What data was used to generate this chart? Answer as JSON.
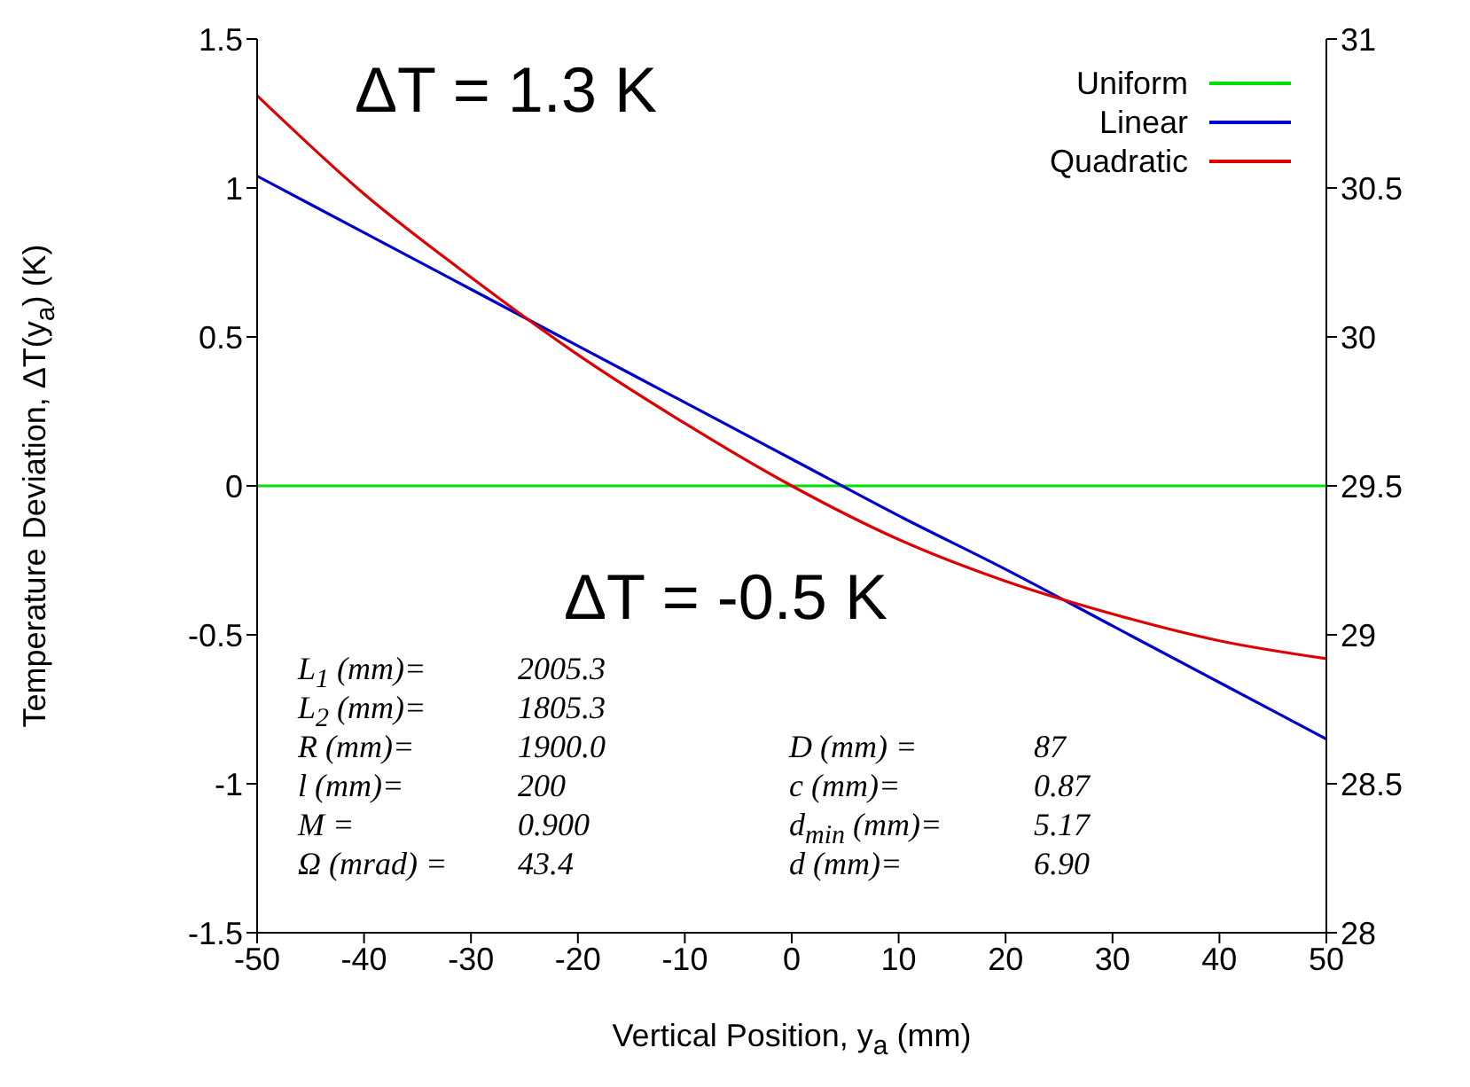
{
  "chart_data": {
    "type": "line",
    "xlabel": "Vertical Position,  y$_{a}$  (mm)",
    "ylabel": "Temperature Deviation,  ΔT(y$_{a}$)  (K)",
    "x": [
      -50,
      -40,
      -30,
      -20,
      -10,
      0,
      10,
      20,
      30,
      40,
      50
    ],
    "series": [
      {
        "name": "Uniform",
        "color": "#00e000",
        "values": [
          0,
          0,
          0,
          0,
          0,
          0,
          0,
          0,
          0,
          0,
          0
        ]
      },
      {
        "name": "Linear",
        "color": "#0000cc",
        "values": [
          1.04,
          0.85,
          0.66,
          0.47,
          0.28,
          0.09,
          -0.1,
          -0.28,
          -0.47,
          -0.66,
          -0.85
        ]
      },
      {
        "name": "Quadratic",
        "color": "#dd0000",
        "values": [
          1.31,
          0.98,
          0.7,
          0.44,
          0.21,
          0.0,
          -0.18,
          -0.32,
          -0.43,
          -0.52,
          -0.58
        ]
      }
    ],
    "xlim": [
      -50,
      50
    ],
    "xticks": [
      -50,
      -40,
      -30,
      -20,
      -10,
      0,
      10,
      20,
      30,
      40,
      50
    ],
    "ylim": [
      -1.5,
      1.5
    ],
    "yticks": [
      -1.5,
      -1,
      -0.5,
      0,
      0.5,
      1,
      1.5
    ],
    "y2lim": [
      28,
      31
    ],
    "y2ticks": [
      28,
      28.5,
      29,
      29.5,
      30,
      30.5,
      31
    ],
    "legend": "top right",
    "marker": "none",
    "line_style": "solid",
    "annotations": [
      "ΔT = 1.3 K",
      "ΔT = -0.5 K",
      "L$_{1}$ (mm)=",
      "2005.3",
      "L$_{2}$ (mm)=",
      "1805.3",
      "R (mm)=",
      "1900.0",
      "l (mm)=",
      "200",
      "M =",
      "0.900",
      "Ω (mrad) =",
      "43.4",
      "D (mm) =",
      "87",
      "c (mm)=",
      "0.87",
      "d$_{min}$ (mm)=",
      "5.17",
      "d (mm)=",
      "6.90"
    ]
  }
}
